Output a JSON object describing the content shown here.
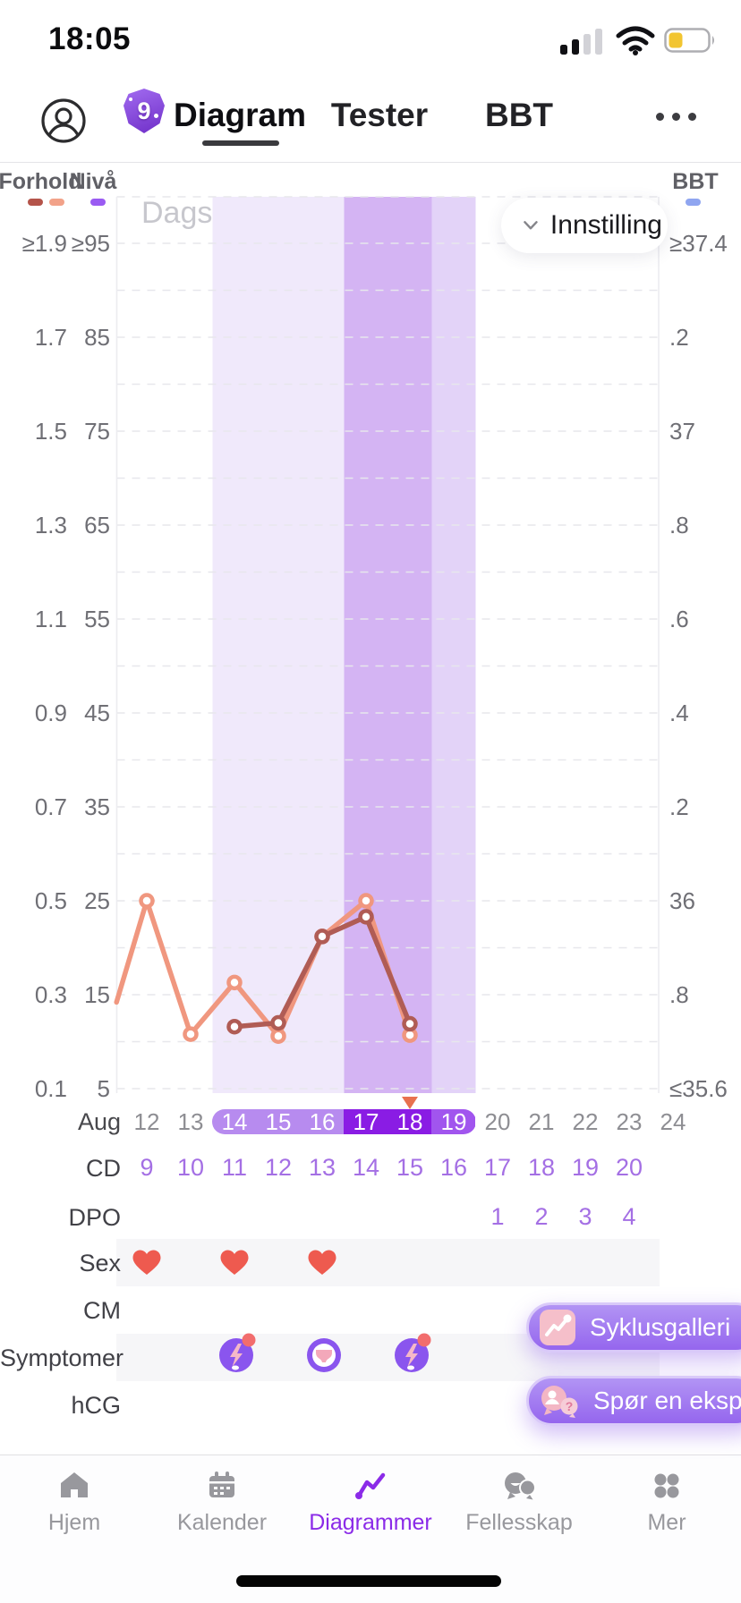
{
  "status_bar": {
    "time": "18:05"
  },
  "header": {
    "badge_count": "9",
    "tabs": [
      {
        "label": "Diagram",
        "active": true
      },
      {
        "label": "Tester",
        "active": false
      },
      {
        "label": "BBT",
        "active": false
      }
    ]
  },
  "chart": {
    "watermark": "Dagsvisning",
    "settings_label": "Innstilling",
    "legend": {
      "forhold": "Forhold",
      "niva": "Nivå",
      "bbt": "BBT"
    },
    "month_label": "Aug"
  },
  "chart_data": {
    "type": "line",
    "title": "",
    "x_dates": [
      12,
      13,
      14,
      15,
      16,
      17,
      18,
      19,
      20,
      21,
      22,
      23,
      24
    ],
    "x_month": "Aug",
    "left_axis_forhold": [
      "≥1.9",
      "1.7",
      "1.5",
      "1.3",
      "1.1",
      "0.9",
      "0.7",
      "0.5",
      "0.3",
      "0.1"
    ],
    "left_axis_niva": [
      "≥95",
      "85",
      "75",
      "65",
      "55",
      "45",
      "35",
      "25",
      "15",
      "5"
    ],
    "right_axis_bbt": [
      "≥37.4",
      ".2",
      "37",
      ".8",
      ".6",
      ".4",
      ".2",
      "36",
      ".8",
      "≤35.6"
    ],
    "niva_axis_range": [
      5,
      95
    ],
    "grid": "dashed, minor line every 5 units",
    "legend_position": "top",
    "series": [
      {
        "name": "Nivå-line (light salmon)",
        "color": "#f0977f",
        "lead_in_point": [
          11.31,
          14.2
        ],
        "points": [
          [
            12,
            25
          ],
          [
            13,
            10.8
          ],
          [
            14,
            16.3
          ],
          [
            15,
            10.6
          ],
          [
            16,
            21.2
          ],
          [
            17,
            25
          ],
          [
            18,
            10.7
          ]
        ]
      },
      {
        "name": "Forhold-line (dark red)",
        "color": "#b05c55",
        "points": [
          [
            14,
            11.6
          ],
          [
            15,
            12.0
          ],
          [
            16,
            21.2
          ],
          [
            17,
            23.3
          ],
          [
            18,
            11.9
          ]
        ]
      }
    ],
    "fertile_window": {
      "start_date": 13.5,
      "peak_start": 16.5,
      "peak_end": 18.5,
      "end_date": 19.5
    },
    "today_marker_date": 18,
    "highlight_dates": {
      "light_pill": [
        14,
        15,
        16
      ],
      "dark_pill": [
        17,
        18
      ],
      "medium_pill": [
        19
      ]
    }
  },
  "rows": {
    "cd": {
      "label": "CD",
      "start_date": 12,
      "values": [
        9,
        10,
        11,
        12,
        13,
        14,
        15,
        16,
        17,
        18,
        19,
        20
      ]
    },
    "dpo": {
      "label": "DPO",
      "start_date": 20,
      "values": [
        1,
        2,
        3,
        4
      ]
    },
    "sex": {
      "label": "Sex",
      "heart_dates": [
        12,
        14,
        16
      ]
    },
    "cm": {
      "label": "CM"
    },
    "symptomer": {
      "label": "Symptomer",
      "entries": [
        {
          "date": 14,
          "icon": "cramps",
          "badge": true
        },
        {
          "date": 16,
          "icon": "discharge",
          "badge": false
        },
        {
          "date": 18,
          "icon": "cramps",
          "badge": true
        }
      ]
    },
    "hcg": {
      "label": "hCG"
    }
  },
  "fabs": [
    {
      "label": "Syklusgalleri",
      "icon": "cycle-gallery"
    },
    {
      "label": "Spør en ekspert",
      "icon": "ask-expert"
    }
  ],
  "nav": {
    "items": [
      {
        "label": "Hjem",
        "icon": "home",
        "active": false
      },
      {
        "label": "Kalender",
        "icon": "calendar",
        "active": false
      },
      {
        "label": "Diagrammer",
        "icon": "chart",
        "active": true
      },
      {
        "label": "Fellesskap",
        "icon": "community",
        "active": false
      },
      {
        "label": "Mer",
        "icon": "more",
        "active": false
      }
    ]
  },
  "colors": {
    "accent_purple": "#8b2be8",
    "line_forhold": "#b05c55",
    "line_niva": "#f0977f",
    "legend_dash_forhold_dark": "#b4544a",
    "legend_dash_forhold_light": "#f2a289",
    "legend_dash_niva": "#9a5bf2",
    "legend_dash_bbt": "#8fa5f0",
    "band_light": "#f0e9fb",
    "band_dark": "#d4b4f3",
    "band_medium": "#e3d3f8",
    "pill_light": "#b78bef",
    "pill_dark": "#8a1ce4",
    "pill_medium": "#a155ee",
    "heart": "#ee5a4f",
    "triangle": "#e8714f",
    "cd_number": "#a46fe4",
    "date_gray": "#8e8e93",
    "grid_line": "#e7e7ec",
    "battery_fill": "#f2c531"
  }
}
